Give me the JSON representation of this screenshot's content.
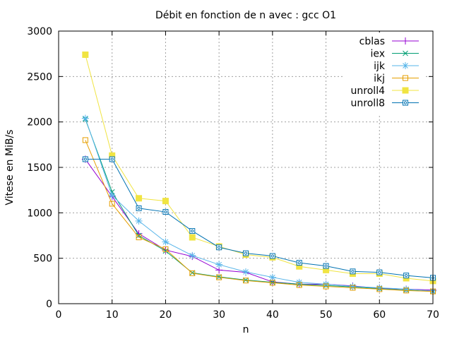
{
  "chart_data": {
    "type": "line",
    "title": "Débit en fonction de n avec :  gcc O1",
    "xlabel": "n",
    "ylabel": "Vitese en MiB/s",
    "xlim": [
      0,
      70
    ],
    "ylim": [
      0,
      3000
    ],
    "xticks": [
      0,
      10,
      20,
      30,
      40,
      50,
      60,
      70
    ],
    "yticks": [
      0,
      500,
      1000,
      1500,
      2000,
      2500,
      3000
    ],
    "grid": true,
    "legend_position": "top-right",
    "x": [
      5,
      10,
      15,
      20,
      25,
      30,
      35,
      40,
      45,
      50,
      55,
      60,
      65,
      70
    ],
    "series": [
      {
        "name": "cblas",
        "color": "#9400d3",
        "marker": "plus",
        "values": [
          1590,
          1180,
          770,
          590,
          520,
          370,
          345,
          240,
          215,
          215,
          195,
          170,
          160,
          150
        ]
      },
      {
        "name": "iex",
        "color": "#009e73",
        "marker": "cross",
        "values": [
          2030,
          1230,
          750,
          580,
          340,
          295,
          260,
          235,
          215,
          200,
          185,
          165,
          150,
          135
        ]
      },
      {
        "name": "ijk",
        "color": "#56b4e9",
        "marker": "star",
        "values": [
          2040,
          1190,
          910,
          680,
          530,
          430,
          350,
          290,
          235,
          215,
          190,
          175,
          160,
          140
        ]
      },
      {
        "name": "ikj",
        "color": "#e69f00",
        "marker": "box",
        "values": [
          1800,
          1100,
          730,
          600,
          335,
          290,
          255,
          230,
          205,
          190,
          175,
          160,
          145,
          135
        ]
      },
      {
        "name": "unroll4",
        "color": "#f0e442",
        "marker": "filledbox",
        "values": [
          2740,
          1630,
          1160,
          1130,
          730,
          630,
          540,
          510,
          410,
          370,
          330,
          330,
          280,
          250
        ]
      },
      {
        "name": "unroll8",
        "color": "#0072b2",
        "marker": "circle",
        "values": [
          1590,
          1590,
          1050,
          1010,
          800,
          620,
          555,
          525,
          450,
          415,
          355,
          345,
          310,
          285
        ]
      }
    ]
  }
}
